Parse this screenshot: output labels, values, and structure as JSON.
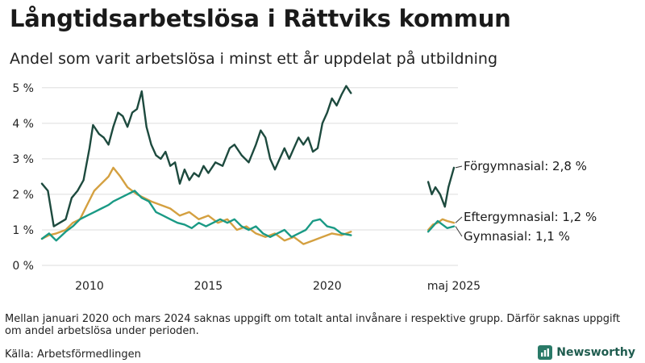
{
  "title": "Långtidsarbetslösa i Rättviks kommun",
  "subtitle": "Andel som varit arbetslösa i minst ett år uppdelat på utbildning",
  "footnote": "Mellan januari 2020 och mars 2024 saknas uppgift om totalt antal invånare i respektive grupp. Därför saknas uppgift om andel arbetslösa under perioden.",
  "source": "Källa: Arbetsförmedlingen",
  "logo_text": "Newsworthy",
  "colors": {
    "forgymnasial": "#1d4a3e",
    "gymnasial": "#1a9a85",
    "eftergymnasial": "#d4a040",
    "grid": "#dddddd",
    "logo": "#2a7a68"
  },
  "chart_data": {
    "type": "line",
    "title": "Långtidsarbetslösa i Rättviks kommun",
    "subtitle": "Andel som varit arbetslösa i minst ett år uppdelat på utbildning",
    "y_unit": "%",
    "ylim": [
      0,
      5.2
    ],
    "y_ticks": [
      {
        "value": 0,
        "label": "0 %"
      },
      {
        "value": 1,
        "label": "1 %"
      },
      {
        "value": 2,
        "label": "2 %"
      },
      {
        "value": 3,
        "label": "3 %"
      },
      {
        "value": 4,
        "label": "4 %"
      },
      {
        "value": 5,
        "label": "5 %"
      }
    ],
    "x_ticks": [
      {
        "value": 2010.0,
        "label": "2010"
      },
      {
        "value": 2015.0,
        "label": "2015"
      },
      {
        "value": 2020.0,
        "label": "2020"
      },
      {
        "value": 2025.33,
        "label": "maj 2025"
      }
    ],
    "xlim": [
      2008.0,
      2025.5
    ],
    "grid": true,
    "series": [
      {
        "name": "Förgymnasial",
        "label": "Förgymnasial: 2,8 %",
        "color_key": "forgymnasial",
        "segments": [
          [
            [
              2008.0,
              2.3
            ],
            [
              2008.25,
              2.1
            ],
            [
              2008.5,
              1.1
            ],
            [
              2008.75,
              1.2
            ],
            [
              2009.0,
              1.3
            ],
            [
              2009.25,
              1.9
            ],
            [
              2009.5,
              2.1
            ],
            [
              2009.75,
              2.4
            ],
            [
              2010.0,
              3.3
            ],
            [
              2010.15,
              3.95
            ],
            [
              2010.4,
              3.7
            ],
            [
              2010.6,
              3.6
            ],
            [
              2010.8,
              3.4
            ],
            [
              2011.0,
              3.9
            ],
            [
              2011.2,
              4.3
            ],
            [
              2011.4,
              4.2
            ],
            [
              2011.6,
              3.9
            ],
            [
              2011.8,
              4.3
            ],
            [
              2012.0,
              4.4
            ],
            [
              2012.2,
              4.9
            ],
            [
              2012.4,
              3.9
            ],
            [
              2012.6,
              3.4
            ],
            [
              2012.8,
              3.1
            ],
            [
              2013.0,
              3.0
            ],
            [
              2013.2,
              3.2
            ],
            [
              2013.4,
              2.8
            ],
            [
              2013.6,
              2.9
            ],
            [
              2013.8,
              2.3
            ],
            [
              2014.0,
              2.7
            ],
            [
              2014.2,
              2.4
            ],
            [
              2014.4,
              2.6
            ],
            [
              2014.6,
              2.5
            ],
            [
              2014.8,
              2.8
            ],
            [
              2015.0,
              2.6
            ],
            [
              2015.3,
              2.9
            ],
            [
              2015.6,
              2.8
            ],
            [
              2015.9,
              3.3
            ],
            [
              2016.1,
              3.4
            ],
            [
              2016.4,
              3.1
            ],
            [
              2016.7,
              2.9
            ],
            [
              2017.0,
              3.4
            ],
            [
              2017.2,
              3.8
            ],
            [
              2017.4,
              3.6
            ],
            [
              2017.6,
              3.0
            ],
            [
              2017.8,
              2.7
            ],
            [
              2018.0,
              3.0
            ],
            [
              2018.2,
              3.3
            ],
            [
              2018.4,
              3.0
            ],
            [
              2018.6,
              3.3
            ],
            [
              2018.8,
              3.6
            ],
            [
              2019.0,
              3.4
            ],
            [
              2019.2,
              3.6
            ],
            [
              2019.4,
              3.2
            ],
            [
              2019.6,
              3.3
            ],
            [
              2019.8,
              4.0
            ],
            [
              2020.0,
              4.3
            ],
            [
              2020.2,
              4.7
            ],
            [
              2020.4,
              4.5
            ],
            [
              2020.6,
              4.8
            ],
            [
              2020.8,
              5.05
            ],
            [
              2021.0,
              4.85
            ]
          ],
          [
            [
              2024.25,
              2.35
            ],
            [
              2024.4,
              2.0
            ],
            [
              2024.55,
              2.2
            ],
            [
              2024.75,
              2.0
            ],
            [
              2024.95,
              1.65
            ],
            [
              2025.1,
              2.2
            ],
            [
              2025.33,
              2.75
            ]
          ]
        ]
      },
      {
        "name": "Eftergymnasial",
        "label": "Eftergymnasial: 1,2 %",
        "color_key": "eftergymnasial",
        "segments": [
          [
            [
              2008.0,
              0.75
            ],
            [
              2008.3,
              0.85
            ],
            [
              2008.6,
              0.9
            ],
            [
              2009.0,
              1.0
            ],
            [
              2009.3,
              1.2
            ],
            [
              2009.6,
              1.3
            ],
            [
              2009.9,
              1.7
            ],
            [
              2010.2,
              2.1
            ],
            [
              2010.5,
              2.3
            ],
            [
              2010.8,
              2.5
            ],
            [
              2011.0,
              2.75
            ],
            [
              2011.3,
              2.5
            ],
            [
              2011.6,
              2.2
            ],
            [
              2012.0,
              2.0
            ],
            [
              2012.3,
              1.9
            ],
            [
              2012.6,
              1.8
            ],
            [
              2013.0,
              1.7
            ],
            [
              2013.4,
              1.6
            ],
            [
              2013.8,
              1.4
            ],
            [
              2014.2,
              1.5
            ],
            [
              2014.6,
              1.3
            ],
            [
              2015.0,
              1.4
            ],
            [
              2015.4,
              1.2
            ],
            [
              2015.8,
              1.3
            ],
            [
              2016.2,
              1.0
            ],
            [
              2016.6,
              1.1
            ],
            [
              2017.0,
              0.9
            ],
            [
              2017.4,
              0.8
            ],
            [
              2017.8,
              0.9
            ],
            [
              2018.2,
              0.7
            ],
            [
              2018.6,
              0.8
            ],
            [
              2019.0,
              0.6
            ],
            [
              2019.4,
              0.7
            ],
            [
              2019.8,
              0.8
            ],
            [
              2020.2,
              0.9
            ],
            [
              2020.6,
              0.85
            ],
            [
              2021.0,
              0.95
            ]
          ],
          [
            [
              2024.25,
              1.0
            ],
            [
              2024.45,
              1.15
            ],
            [
              2024.65,
              1.2
            ],
            [
              2024.85,
              1.3
            ],
            [
              2025.05,
              1.25
            ],
            [
              2025.33,
              1.2
            ]
          ]
        ]
      },
      {
        "name": "Gymnasial",
        "label": "Gymnasial: 1,1 %",
        "color_key": "gymnasial",
        "segments": [
          [
            [
              2008.0,
              0.75
            ],
            [
              2008.3,
              0.9
            ],
            [
              2008.6,
              0.7
            ],
            [
              2009.0,
              0.95
            ],
            [
              2009.3,
              1.1
            ],
            [
              2009.6,
              1.3
            ],
            [
              2009.9,
              1.4
            ],
            [
              2010.2,
              1.5
            ],
            [
              2010.5,
              1.6
            ],
            [
              2010.8,
              1.7
            ],
            [
              2011.0,
              1.8
            ],
            [
              2011.3,
              1.9
            ],
            [
              2011.6,
              2.0
            ],
            [
              2011.9,
              2.1
            ],
            [
              2012.2,
              1.9
            ],
            [
              2012.5,
              1.8
            ],
            [
              2012.8,
              1.5
            ],
            [
              2013.1,
              1.4
            ],
            [
              2013.4,
              1.3
            ],
            [
              2013.7,
              1.2
            ],
            [
              2014.0,
              1.15
            ],
            [
              2014.3,
              1.05
            ],
            [
              2014.6,
              1.2
            ],
            [
              2014.9,
              1.1
            ],
            [
              2015.2,
              1.2
            ],
            [
              2015.5,
              1.3
            ],
            [
              2015.8,
              1.2
            ],
            [
              2016.1,
              1.3
            ],
            [
              2016.4,
              1.1
            ],
            [
              2016.7,
              1.0
            ],
            [
              2017.0,
              1.1
            ],
            [
              2017.3,
              0.9
            ],
            [
              2017.6,
              0.8
            ],
            [
              2017.9,
              0.9
            ],
            [
              2018.2,
              1.0
            ],
            [
              2018.5,
              0.8
            ],
            [
              2018.8,
              0.9
            ],
            [
              2019.1,
              1.0
            ],
            [
              2019.4,
              1.25
            ],
            [
              2019.7,
              1.3
            ],
            [
              2020.0,
              1.1
            ],
            [
              2020.3,
              1.05
            ],
            [
              2020.6,
              0.9
            ],
            [
              2021.0,
              0.85
            ]
          ],
          [
            [
              2024.25,
              0.95
            ],
            [
              2024.45,
              1.1
            ],
            [
              2024.65,
              1.25
            ],
            [
              2024.85,
              1.15
            ],
            [
              2025.05,
              1.05
            ],
            [
              2025.33,
              1.1
            ]
          ]
        ]
      }
    ]
  }
}
